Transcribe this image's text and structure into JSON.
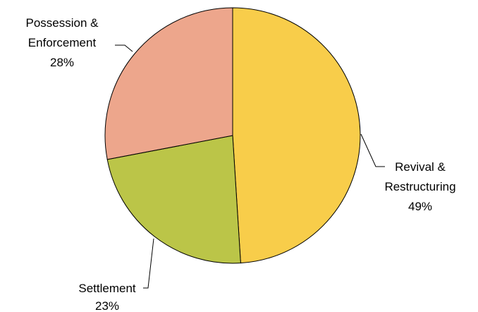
{
  "chart_data": {
    "type": "pie",
    "title": "",
    "slices": [
      {
        "name_lines": [
          "Revival &",
          "Restructuring"
        ],
        "value_label": "49%",
        "value": 49,
        "color": "#F8CD4A"
      },
      {
        "name_lines": [
          "Settlement"
        ],
        "value_label": "23%",
        "value": 23,
        "color": "#BBC548"
      },
      {
        "name_lines": [
          "Possession &",
          "Enforcement"
        ],
        "value_label": "28%",
        "value": 28,
        "color": "#EDA68C"
      }
    ],
    "start_angle_deg": 0,
    "direction": "clockwise",
    "legend": "none",
    "label_style": "outside with leader lines"
  }
}
